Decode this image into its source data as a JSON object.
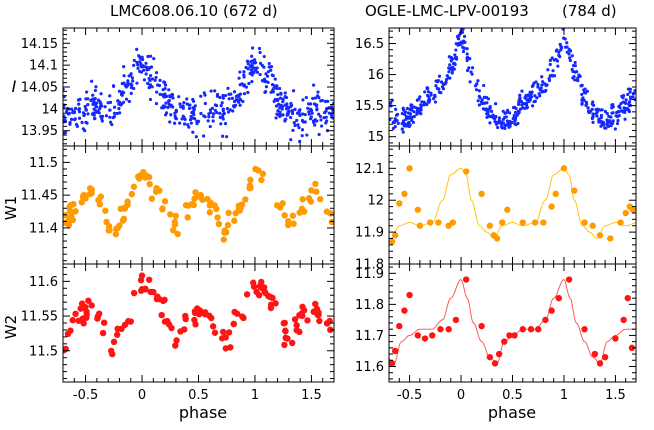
{
  "figure": {
    "left_title": "LMC608.06.10",
    "left_period": "(672 d)",
    "right_title": "OGLE-LMC-LPV-00193",
    "right_period": "(784 d)",
    "xlabel": "phase",
    "row_labels": [
      "I",
      "W1",
      "W2"
    ]
  },
  "colors": {
    "I": "#1428ff",
    "W1": "#ff9a00",
    "W2": "#ff1414",
    "W1_fit": "#ffc000",
    "W2_fit": "#ff4a4a"
  },
  "chart_data": [
    {
      "id": "left-I",
      "type": "scatter",
      "title": "LMC608.06.10 (672 d)",
      "xlabel": "",
      "ylabel": "I",
      "xlim": [
        -0.7,
        1.7
      ],
      "ylim": [
        14.185,
        13.915
      ],
      "inverted_y": true,
      "xticks": [
        -0.5,
        0,
        0.5,
        1,
        1.5
      ],
      "yticks": [
        13.95,
        14,
        14.05,
        14.1,
        14.15
      ],
      "ytick_labels": [
        "13.95",
        "14",
        "14.05",
        "14.1",
        "14.15"
      ],
      "phased_model": {
        "phase": [
          0.0,
          0.1,
          0.25,
          0.32,
          0.5,
          0.6,
          0.75,
          0.85,
          1.0
        ],
        "mag": [
          14.1,
          14.07,
          14.01,
          13.98,
          13.99,
          14.0,
          14.0,
          14.04,
          14.1
        ]
      },
      "scatter_sigma": 0.022,
      "n_points": 560,
      "series": [
        {
          "name": "",
          "color": "#1428ff"
        }
      ]
    },
    {
      "id": "right-I",
      "type": "scatter",
      "title": "OGLE-LMC-LPV-00193 (784 d)",
      "xlabel": "",
      "ylabel": "",
      "xlim": [
        -0.7,
        1.7
      ],
      "ylim": [
        16.75,
        14.85
      ],
      "inverted_y": true,
      "xticks": [
        -0.5,
        0,
        0.5,
        1,
        1.5
      ],
      "yticks": [
        15,
        15.5,
        16,
        16.5
      ],
      "ytick_labels": [
        "15",
        "15.5",
        "16",
        "16.5"
      ],
      "phased_model": {
        "phase": [
          0.0,
          0.1,
          0.2,
          0.3,
          0.4,
          0.5,
          0.6,
          0.7,
          0.8,
          0.9,
          1.0
        ],
        "mag": [
          16.5,
          16.0,
          15.55,
          15.3,
          15.2,
          15.25,
          15.45,
          15.6,
          15.75,
          16.05,
          16.5
        ]
      },
      "scatter_sigma": 0.06,
      "n_points": 520,
      "series": [
        {
          "name": "",
          "color": "#1428ff"
        }
      ]
    },
    {
      "id": "left-W1",
      "type": "scatter",
      "title": "",
      "xlabel": "",
      "ylabel": "W1",
      "xlim": [
        -0.7,
        1.7
      ],
      "ylim": [
        11.525,
        11.345
      ],
      "inverted_y": true,
      "xticks": [
        -0.5,
        0,
        0.5,
        1,
        1.5
      ],
      "yticks": [
        11.4,
        11.45,
        11.5
      ],
      "ytick_labels": [
        "11.4",
        "11.45",
        "11.5"
      ],
      "phased_model": {
        "phase": [
          0.0,
          0.08,
          0.2,
          0.3,
          0.42,
          0.5,
          0.62,
          0.74,
          0.86,
          1.0
        ],
        "mag": [
          11.485,
          11.47,
          11.44,
          11.405,
          11.43,
          11.45,
          11.44,
          11.39,
          11.43,
          11.485
        ]
      },
      "scatter_sigma": 0.008,
      "n_points": 130,
      "series": [
        {
          "name": "",
          "color": "#ff9a00"
        }
      ]
    },
    {
      "id": "right-W1",
      "type": "scatter",
      "title": "",
      "xlabel": "",
      "ylabel": "",
      "xlim": [
        -0.7,
        1.7
      ],
      "ylim": [
        12.17,
        11.8
      ],
      "inverted_y": true,
      "xticks": [
        -0.5,
        0,
        0.5,
        1,
        1.5
      ],
      "yticks": [
        11.8,
        11.9,
        12,
        12.1
      ],
      "ytick_labels": [
        "11.8",
        "11.9",
        "12",
        "12.1"
      ],
      "fit_curve": {
        "phase": [
          0.0,
          0.05,
          0.1,
          0.18,
          0.25,
          0.32,
          0.4,
          0.5,
          0.6,
          0.72,
          0.82,
          0.9,
          1.0
        ],
        "mag": [
          12.1,
          12.08,
          12.0,
          11.92,
          11.9,
          11.88,
          11.92,
          11.93,
          11.92,
          11.93,
          12.0,
          12.08,
          12.1
        ]
      },
      "points": {
        "phase": [
          -0.67,
          -0.64,
          -0.6,
          -0.55,
          -0.5,
          -0.42,
          -0.4,
          -0.3,
          -0.22,
          -0.12,
          -0.08,
          0.05,
          0.2,
          0.28,
          0.32,
          0.35,
          0.4,
          0.45,
          0.6,
          0.72,
          0.8,
          0.88,
          0.92,
          1.0,
          1.1,
          1.2,
          1.28,
          1.35,
          1.45,
          1.55,
          1.6,
          1.64,
          1.67
        ],
        "mag": [
          11.87,
          11.89,
          11.99,
          12.02,
          12.1,
          11.97,
          11.92,
          11.93,
          11.93,
          11.92,
          11.93,
          12.09,
          12.02,
          11.92,
          11.89,
          11.88,
          11.93,
          11.97,
          11.93,
          11.93,
          11.93,
          11.98,
          12.02,
          12.1,
          12.03,
          11.93,
          11.92,
          11.89,
          11.88,
          11.93,
          11.96,
          11.98,
          11.97
        ]
      },
      "series": [
        {
          "name": "",
          "color": "#ff9a00"
        }
      ]
    },
    {
      "id": "left-W2",
      "type": "scatter",
      "title": "",
      "xlabel": "phase",
      "ylabel": "W2",
      "xlim": [
        -0.7,
        1.7
      ],
      "ylim": [
        11.625,
        11.455
      ],
      "inverted_y": true,
      "xticks": [
        -0.5,
        0,
        0.5,
        1,
        1.5
      ],
      "xtick_labels": [
        "-0.5",
        "0",
        "0.5",
        "1",
        "1.5"
      ],
      "yticks": [
        11.5,
        11.55,
        11.6
      ],
      "ytick_labels": [
        "11.5",
        "11.55",
        "11.6"
      ],
      "phased_model": {
        "phase": [
          0.0,
          0.08,
          0.2,
          0.3,
          0.42,
          0.5,
          0.62,
          0.74,
          0.86,
          1.0
        ],
        "mag": [
          11.595,
          11.585,
          11.56,
          11.51,
          11.55,
          11.56,
          11.55,
          11.51,
          11.545,
          11.595
        ]
      },
      "scatter_sigma": 0.009,
      "n_points": 130,
      "series": [
        {
          "name": "",
          "color": "#ff1414"
        }
      ]
    },
    {
      "id": "right-W2",
      "type": "scatter",
      "title": "",
      "xlabel": "phase",
      "ylabel": "",
      "xlim": [
        -0.7,
        1.7
      ],
      "ylim": [
        11.93,
        11.55
      ],
      "inverted_y": true,
      "xticks": [
        -0.5,
        0,
        0.5,
        1,
        1.5
      ],
      "xtick_labels": [
        "-0.5",
        "0",
        "0.5",
        "1",
        "1.5"
      ],
      "yticks": [
        11.6,
        11.7,
        11.8,
        11.9
      ],
      "ytick_labels": [
        "11.6",
        "11.7",
        "11.8",
        "11.9"
      ],
      "fit_curve": {
        "phase": [
          0.0,
          0.06,
          0.12,
          0.2,
          0.28,
          0.35,
          0.42,
          0.5,
          0.6,
          0.72,
          0.82,
          0.9,
          1.0
        ],
        "mag": [
          11.88,
          11.82,
          11.74,
          11.68,
          11.63,
          11.61,
          11.68,
          11.7,
          11.72,
          11.72,
          11.75,
          11.82,
          11.88
        ]
      },
      "points": {
        "phase": [
          -0.67,
          -0.64,
          -0.6,
          -0.55,
          -0.5,
          -0.42,
          -0.35,
          -0.28,
          -0.2,
          -0.12,
          -0.05,
          0.05,
          0.2,
          0.28,
          0.33,
          0.37,
          0.42,
          0.47,
          0.52,
          0.6,
          0.68,
          0.75,
          0.82,
          0.88,
          0.95,
          1.05,
          1.2,
          1.3,
          1.35,
          1.4,
          1.5,
          1.58,
          1.62,
          1.66
        ],
        "mag": [
          11.61,
          11.65,
          11.73,
          11.78,
          11.83,
          11.7,
          11.69,
          11.7,
          11.72,
          11.72,
          11.75,
          11.88,
          11.73,
          11.63,
          11.61,
          11.64,
          11.68,
          11.7,
          11.7,
          11.72,
          11.72,
          11.72,
          11.75,
          11.78,
          11.82,
          11.88,
          11.72,
          11.64,
          11.61,
          11.63,
          11.69,
          11.75,
          11.82,
          11.66
        ]
      },
      "series": [
        {
          "name": "",
          "color": "#ff1414"
        }
      ]
    }
  ]
}
